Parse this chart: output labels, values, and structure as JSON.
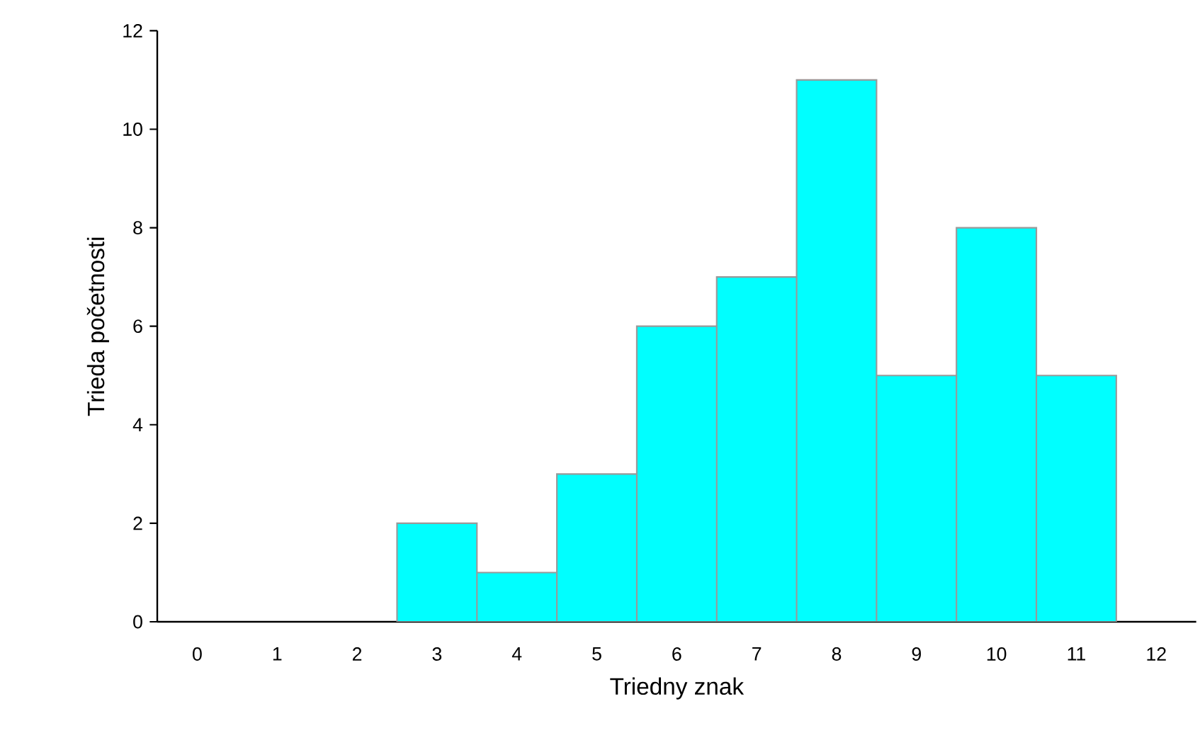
{
  "chart_data": {
    "type": "bar",
    "xlabel": "Triedny znak",
    "ylabel": "Trieda početnosti",
    "categories": [
      "0",
      "1",
      "2",
      "3",
      "4",
      "5",
      "6",
      "7",
      "8",
      "9",
      "10",
      "11",
      "12"
    ],
    "values": [
      null,
      null,
      null,
      2,
      1,
      3,
      6,
      7,
      11,
      5,
      8,
      5,
      null
    ],
    "color": "#00ffff",
    "ylim": [
      0,
      12
    ],
    "yticks": [
      0,
      2,
      4,
      6,
      8,
      10,
      12
    ]
  }
}
